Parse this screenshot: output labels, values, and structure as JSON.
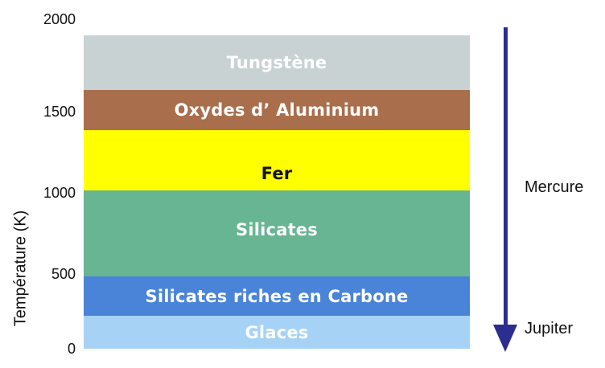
{
  "axis": {
    "label": "Température (K)",
    "ticks": [
      "2000",
      "1500",
      "1000",
      "500",
      "0"
    ]
  },
  "layers": [
    {
      "name": "Tungstène",
      "color": "#c9d2d3",
      "text_color": "#ffffff"
    },
    {
      "name": "Oxydes d’ Aluminium",
      "color": "#a96e4c",
      "text_color": "#ffffff"
    },
    {
      "name": "Fer",
      "color": "#ffff00",
      "text_color": "#111111"
    },
    {
      "name": "Silicates",
      "color": "#67b592",
      "text_color": "#ffffff"
    },
    {
      "name": "Silicates riches en Carbone",
      "color": "#4a84d8",
      "text_color": "#ffffff"
    },
    {
      "name": "Glaces",
      "color": "#a6d2f6",
      "text_color": "#ffffff"
    }
  ],
  "arrow": {
    "color": "#2b2d8f"
  },
  "planets": {
    "mercury": "Mercure",
    "jupiter": "Jupiter"
  }
}
